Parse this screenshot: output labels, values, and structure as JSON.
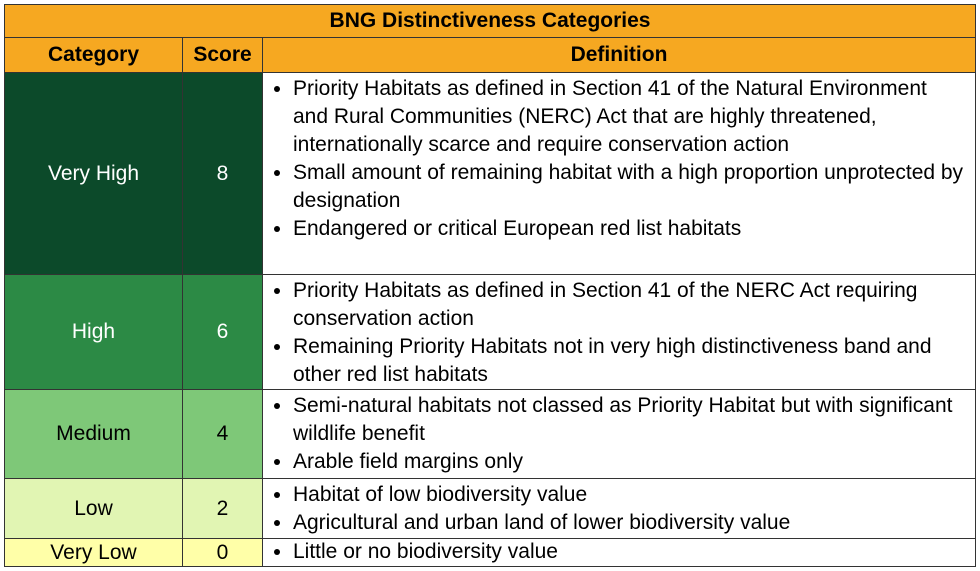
{
  "table": {
    "title": "BNG Distinctiveness Categories",
    "header": [
      "Category",
      "Score",
      "Definition"
    ],
    "rows": [
      {
        "category": "Very High",
        "score": 8,
        "definition": [
          "Priority Habitats as defined in Section 41 of the Natural Environment and Rural Communities (NERC) Act that are highly threatened, internationally scarce and require conservation action",
          "Small amount of remaining habitat with a high proportion unprotected by designation",
          "Endangered or critical European red list habitats"
        ]
      },
      {
        "category": "High",
        "score": 6,
        "definition": [
          "Priority Habitats as defined in Section 41 of the NERC Act requiring conservation action",
          "Remaining Priority Habitats not in very high distinctiveness band and other red list habitats"
        ]
      },
      {
        "category": "Medium",
        "score": 4,
        "definition": [
          "Semi-natural habitats not classed as Priority Habitat but with significant wildlife benefit",
          "Arable field margins only"
        ]
      },
      {
        "category": "Low",
        "score": 2,
        "definition": [
          "Habitat of low biodiversity value",
          "Agricultural and urban land of lower biodiversity value"
        ]
      },
      {
        "category": "Very Low",
        "score": 0,
        "definition": [
          "Little or no biodiversity value"
        ]
      }
    ]
  }
}
